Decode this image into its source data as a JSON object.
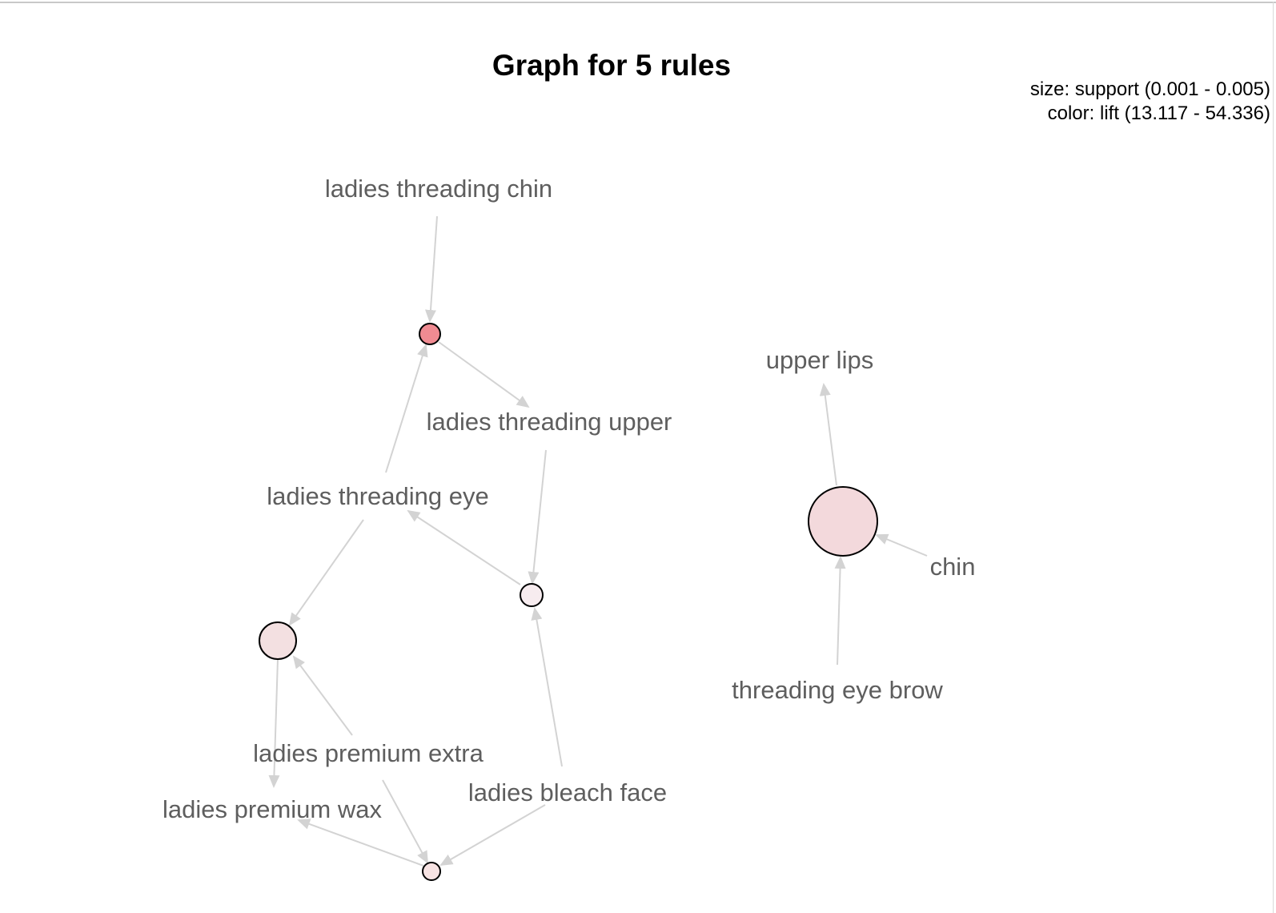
{
  "title": "Graph for 5 rules",
  "legend": {
    "size": "size: support (0.001 - 0.005)",
    "color": "color: lift (13.117 - 54.336)"
  },
  "colors": {
    "edge": "#d3d3d3",
    "label": "#5e5e5e",
    "node_stroke": "#000000"
  },
  "items": [
    {
      "id": "i_chin_long",
      "label": "ladies threading chin"
    },
    {
      "id": "i_upper_long",
      "label": "ladies threading upper"
    },
    {
      "id": "i_eye_long",
      "label": "ladies threading eye"
    },
    {
      "id": "i_extra",
      "label": "ladies premium extra"
    },
    {
      "id": "i_wax",
      "label": "ladies premium wax"
    },
    {
      "id": "i_bleach",
      "label": "ladies bleach face"
    },
    {
      "id": "i_upperlips",
      "label": "upper lips"
    },
    {
      "id": "i_chin",
      "label": "chin"
    },
    {
      "id": "i_browthread",
      "label": "threading eye brow"
    }
  ],
  "rules": [
    {
      "id": "r1",
      "lhs": [
        "ladies threading chin",
        "ladies threading eye"
      ],
      "rhs": "ladies threading upper",
      "support_level": "smallest",
      "color": "#f08b92"
    },
    {
      "id": "r2",
      "lhs": [
        "ladies threading upper",
        "ladies bleach face"
      ],
      "rhs": "ladies threading eye",
      "support_level": "small",
      "color": "#f7ecef"
    },
    {
      "id": "r3",
      "lhs": [
        "ladies threading eye",
        "ladies premium extra"
      ],
      "rhs": "ladies premium wax",
      "support_level": "medium",
      "color": "#f3e0e1"
    },
    {
      "id": "r4",
      "lhs": [
        "ladies premium extra",
        "ladies bleach face"
      ],
      "rhs": "ladies premium wax",
      "support_level": "smallest",
      "color": "#f7e3e3"
    },
    {
      "id": "r5",
      "lhs": [
        "chin",
        "threading eye brow"
      ],
      "rhs": "upper lips",
      "support_level": "largest",
      "color": "#f3d9dc"
    }
  ]
}
